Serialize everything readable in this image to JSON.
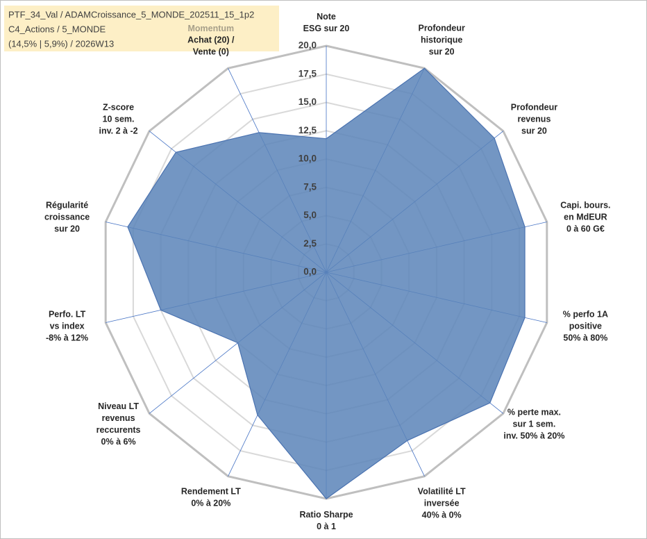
{
  "chart_data": {
    "type": "radar",
    "title_lines": [
      "PTF_34_Val / ADAMCroissance_5_MONDE_202511_15_1p2",
      "C4_Actions / 5_MONDE",
      "(14,5% | 5,9%) / 2026W13"
    ],
    "annotation": "Momentum",
    "categories": [
      "Note\nESG sur 20",
      "Profondeur\nhistorique\nsur 20",
      "Profondeur\nrevenus\nsur 20",
      "Capi. bours.\nen MdEUR\n0 à 60 G€",
      "% perfo 1A\npositive\n50% à 80%",
      "% perte max.\nsur 1 sem.\ninv. 50% à 20%",
      "Volatilité LT\ninversée\n40% à 0%",
      "Ratio Sharpe\n0 à 1",
      "Rendement LT\n0% à 20%",
      "Niveau LT\nrevenus\nreccurents\n0% à 6%",
      "Perfo. LT\nvs index\n-8% à 12%",
      "Régularité\ncroissance\nsur 20",
      "Z-score\n10 sem.\ninv. 2 à -2",
      "Achat (20) /\nVente (0)"
    ],
    "series": [
      {
        "name": "PTF_34_Val",
        "color": "#5b84b8",
        "values": [
          11.8,
          20,
          19,
          18,
          18,
          18.5,
          16.5,
          20,
          14,
          10,
          15,
          18,
          17,
          13.7
        ]
      }
    ],
    "ylim": [
      0,
      20
    ],
    "yticks": [
      {
        "value": 0,
        "label": "0,0"
      },
      {
        "value": 2.5,
        "label": "2,5"
      },
      {
        "value": 5,
        "label": "5,0"
      },
      {
        "value": 7.5,
        "label": "7,5"
      },
      {
        "value": 10,
        "label": "10,0"
      },
      {
        "value": 12.5,
        "label": "12,5"
      },
      {
        "value": 15,
        "label": "15,0"
      },
      {
        "value": 17.5,
        "label": "17,5"
      },
      {
        "value": 20,
        "label": "20,0"
      }
    ],
    "grid": true
  }
}
